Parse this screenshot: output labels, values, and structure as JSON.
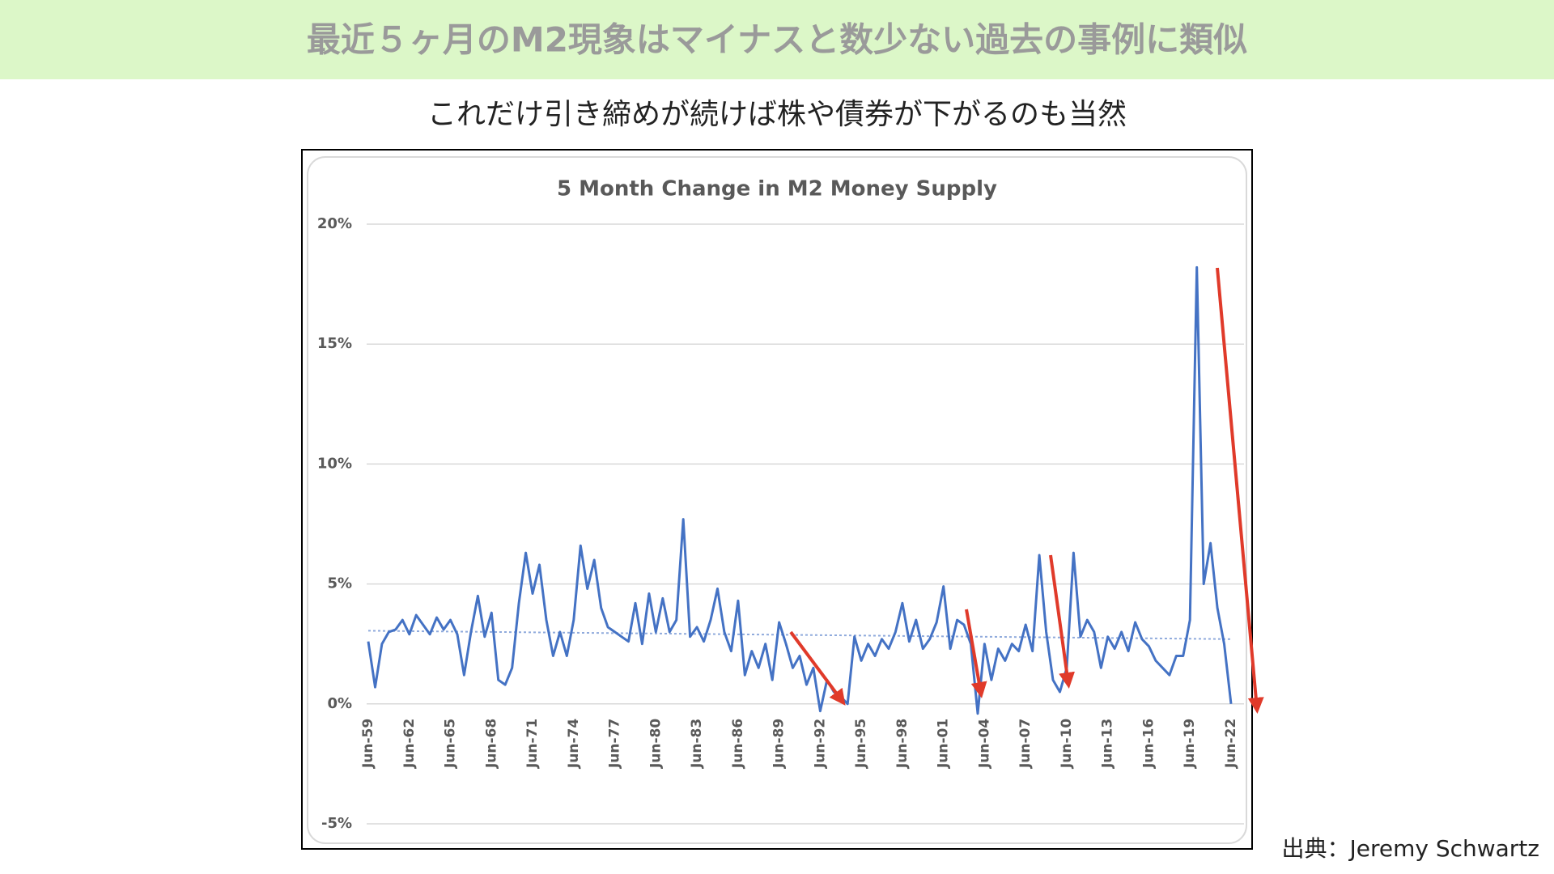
{
  "slide": {
    "title": "最近５ヶ月のM2現象はマイナスと数少ない過去の事例に類似",
    "subtitle": "これだけ引き締めが続けば株や債券が下がるのも当然",
    "source": "出典：Jeremy Schwartz"
  },
  "chart_data": {
    "type": "line",
    "title": "5 Month Change in M2 Money Supply",
    "categories": [
      "Jun-59",
      null,
      null,
      null,
      null,
      null,
      "Jun-62",
      null,
      null,
      null,
      null,
      null,
      "Jun-65",
      null,
      null,
      null,
      null,
      null,
      "Jun-68",
      null,
      null,
      null,
      null,
      null,
      "Jun-71",
      null,
      null,
      null,
      null,
      null,
      "Jun-74",
      null,
      null,
      null,
      null,
      null,
      "Jun-77",
      null,
      null,
      null,
      null,
      null,
      "Jun-80",
      null,
      null,
      null,
      null,
      null,
      "Jun-83",
      null,
      null,
      null,
      null,
      null,
      "Jun-86",
      null,
      null,
      null,
      null,
      null,
      "Jun-89",
      null,
      null,
      null,
      null,
      null,
      "Jun-92",
      null,
      null,
      null,
      null,
      null,
      "Jun-95",
      null,
      null,
      null,
      null,
      null,
      "Jun-98",
      null,
      null,
      null,
      null,
      null,
      "Jun-01",
      null,
      null,
      null,
      null,
      null,
      "Jun-04",
      null,
      null,
      null,
      null,
      null,
      "Jun-07",
      null,
      null,
      null,
      null,
      null,
      "Jun-10",
      null,
      null,
      null,
      null,
      null,
      "Jun-13",
      null,
      null,
      null,
      null,
      null,
      "Jun-16",
      null,
      null,
      null,
      null,
      null,
      "Jun-19",
      null,
      null,
      null,
      null,
      null,
      "Jun-22"
    ],
    "series": [
      {
        "color": "#4472c4",
        "values": [
          2.6,
          0.7,
          2.5,
          3.0,
          3.1,
          3.5,
          2.9,
          3.7,
          3.3,
          2.9,
          3.6,
          3.1,
          3.5,
          2.9,
          1.2,
          3.0,
          4.5,
          2.8,
          3.8,
          1.0,
          0.8,
          1.5,
          4.2,
          6.3,
          4.6,
          5.8,
          3.5,
          2.0,
          3.0,
          2.0,
          3.5,
          6.6,
          4.8,
          6.0,
          4.0,
          3.2,
          3.0,
          2.8,
          2.6,
          4.2,
          2.5,
          4.6,
          3.0,
          4.4,
          3.0,
          3.5,
          7.7,
          2.8,
          3.2,
          2.6,
          3.5,
          4.8,
          3.0,
          2.2,
          4.3,
          1.2,
          2.2,
          1.5,
          2.5,
          1.0,
          3.4,
          2.5,
          1.5,
          2.0,
          0.8,
          1.5,
          -0.3,
          1.0,
          0.5,
          0.3,
          0.0,
          2.8,
          1.8,
          2.5,
          2.0,
          2.7,
          2.3,
          3.0,
          4.2,
          2.6,
          3.5,
          2.3,
          2.7,
          3.4,
          4.9,
          2.3,
          3.5,
          3.3,
          2.5,
          -0.4,
          2.5,
          1.0,
          2.3,
          1.8,
          2.5,
          2.2,
          3.3,
          2.2,
          6.2,
          3.0,
          1.0,
          0.5,
          1.5,
          6.3,
          2.8,
          3.5,
          3.0,
          1.5,
          2.8,
          2.3,
          3.0,
          2.2,
          3.4,
          2.7,
          2.4,
          1.8,
          1.5,
          1.2,
          2.0,
          2.0,
          3.5,
          18.2,
          5.0,
          6.7,
          4.0,
          2.5,
          0.0
        ]
      }
    ],
    "trendline": [
      3.05,
      2.7
    ],
    "trendline_color": "#8faadc",
    "ylim": [
      -5,
      20
    ],
    "yticks": [
      {
        "value": -5,
        "label": "-5%"
      },
      {
        "value": 0,
        "label": "0%"
      },
      {
        "value": 5,
        "label": "5%"
      },
      {
        "value": 10,
        "label": "10%"
      },
      {
        "value": 15,
        "label": "15%"
      },
      {
        "value": 20,
        "label": "20%"
      }
    ],
    "grid": true
  }
}
